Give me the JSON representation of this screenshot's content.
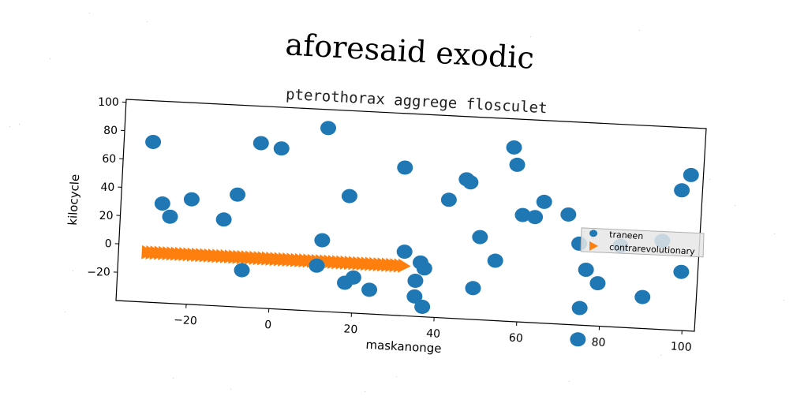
{
  "title": "aforesaid exodic",
  "chart_data": {
    "type": "scatter",
    "title": "pterothorax aggrege flosculet",
    "xlabel": "maskanonge",
    "ylabel": "kilocycle",
    "xlim": [
      -37,
      103
    ],
    "ylim": [
      -40,
      102
    ],
    "xticks": [
      -20,
      0,
      20,
      40,
      60,
      80,
      100
    ],
    "yticks": [
      -20,
      0,
      20,
      40,
      60,
      80,
      100
    ],
    "grid": false,
    "legend_position": "right",
    "colors": {
      "traneen": "#1f77b4",
      "contrarevolutionary": "#ff7f0e"
    },
    "series": [
      {
        "name": "traneen",
        "marker": "circle",
        "points": [
          [
            -30,
            73
          ],
          [
            -27,
            30
          ],
          [
            -25,
            21
          ],
          [
            -20,
            34
          ],
          [
            -12,
            21
          ],
          [
            -9,
            39
          ],
          [
            -7,
            -14
          ],
          [
            -4,
            76
          ],
          [
            1,
            73
          ],
          [
            11,
            -8
          ],
          [
            12,
            10
          ],
          [
            12,
            89
          ],
          [
            18,
            42
          ],
          [
            18,
            -19
          ],
          [
            20,
            -15
          ],
          [
            24,
            -23
          ],
          [
            31,
            64
          ],
          [
            32,
            5
          ],
          [
            35,
            -26
          ],
          [
            35,
            -15
          ],
          [
            36,
            -2
          ],
          [
            37,
            -6
          ],
          [
            37,
            -33
          ],
          [
            42,
            43
          ],
          [
            46,
            58
          ],
          [
            47,
            56
          ],
          [
            49,
            -18
          ],
          [
            50,
            18
          ],
          [
            54,
            2
          ],
          [
            57,
            82
          ],
          [
            58,
            70
          ],
          [
            60,
            35
          ],
          [
            63,
            34
          ],
          [
            65,
            45
          ],
          [
            71,
            37
          ],
          [
            74,
            17
          ],
          [
            75,
            -28
          ],
          [
            75,
            -50
          ],
          [
            76,
            -1
          ],
          [
            79,
            -10
          ],
          [
            84,
            17
          ],
          [
            90,
            -18
          ],
          [
            94,
            22
          ],
          [
            98,
            58
          ],
          [
            99,
            1
          ],
          [
            100,
            69
          ]
        ]
      },
      {
        "name": "contrarevolutionary",
        "marker": "triangle-right",
        "x_start": -30,
        "x_end": 32,
        "x_step": 1,
        "y": -5
      }
    ]
  }
}
